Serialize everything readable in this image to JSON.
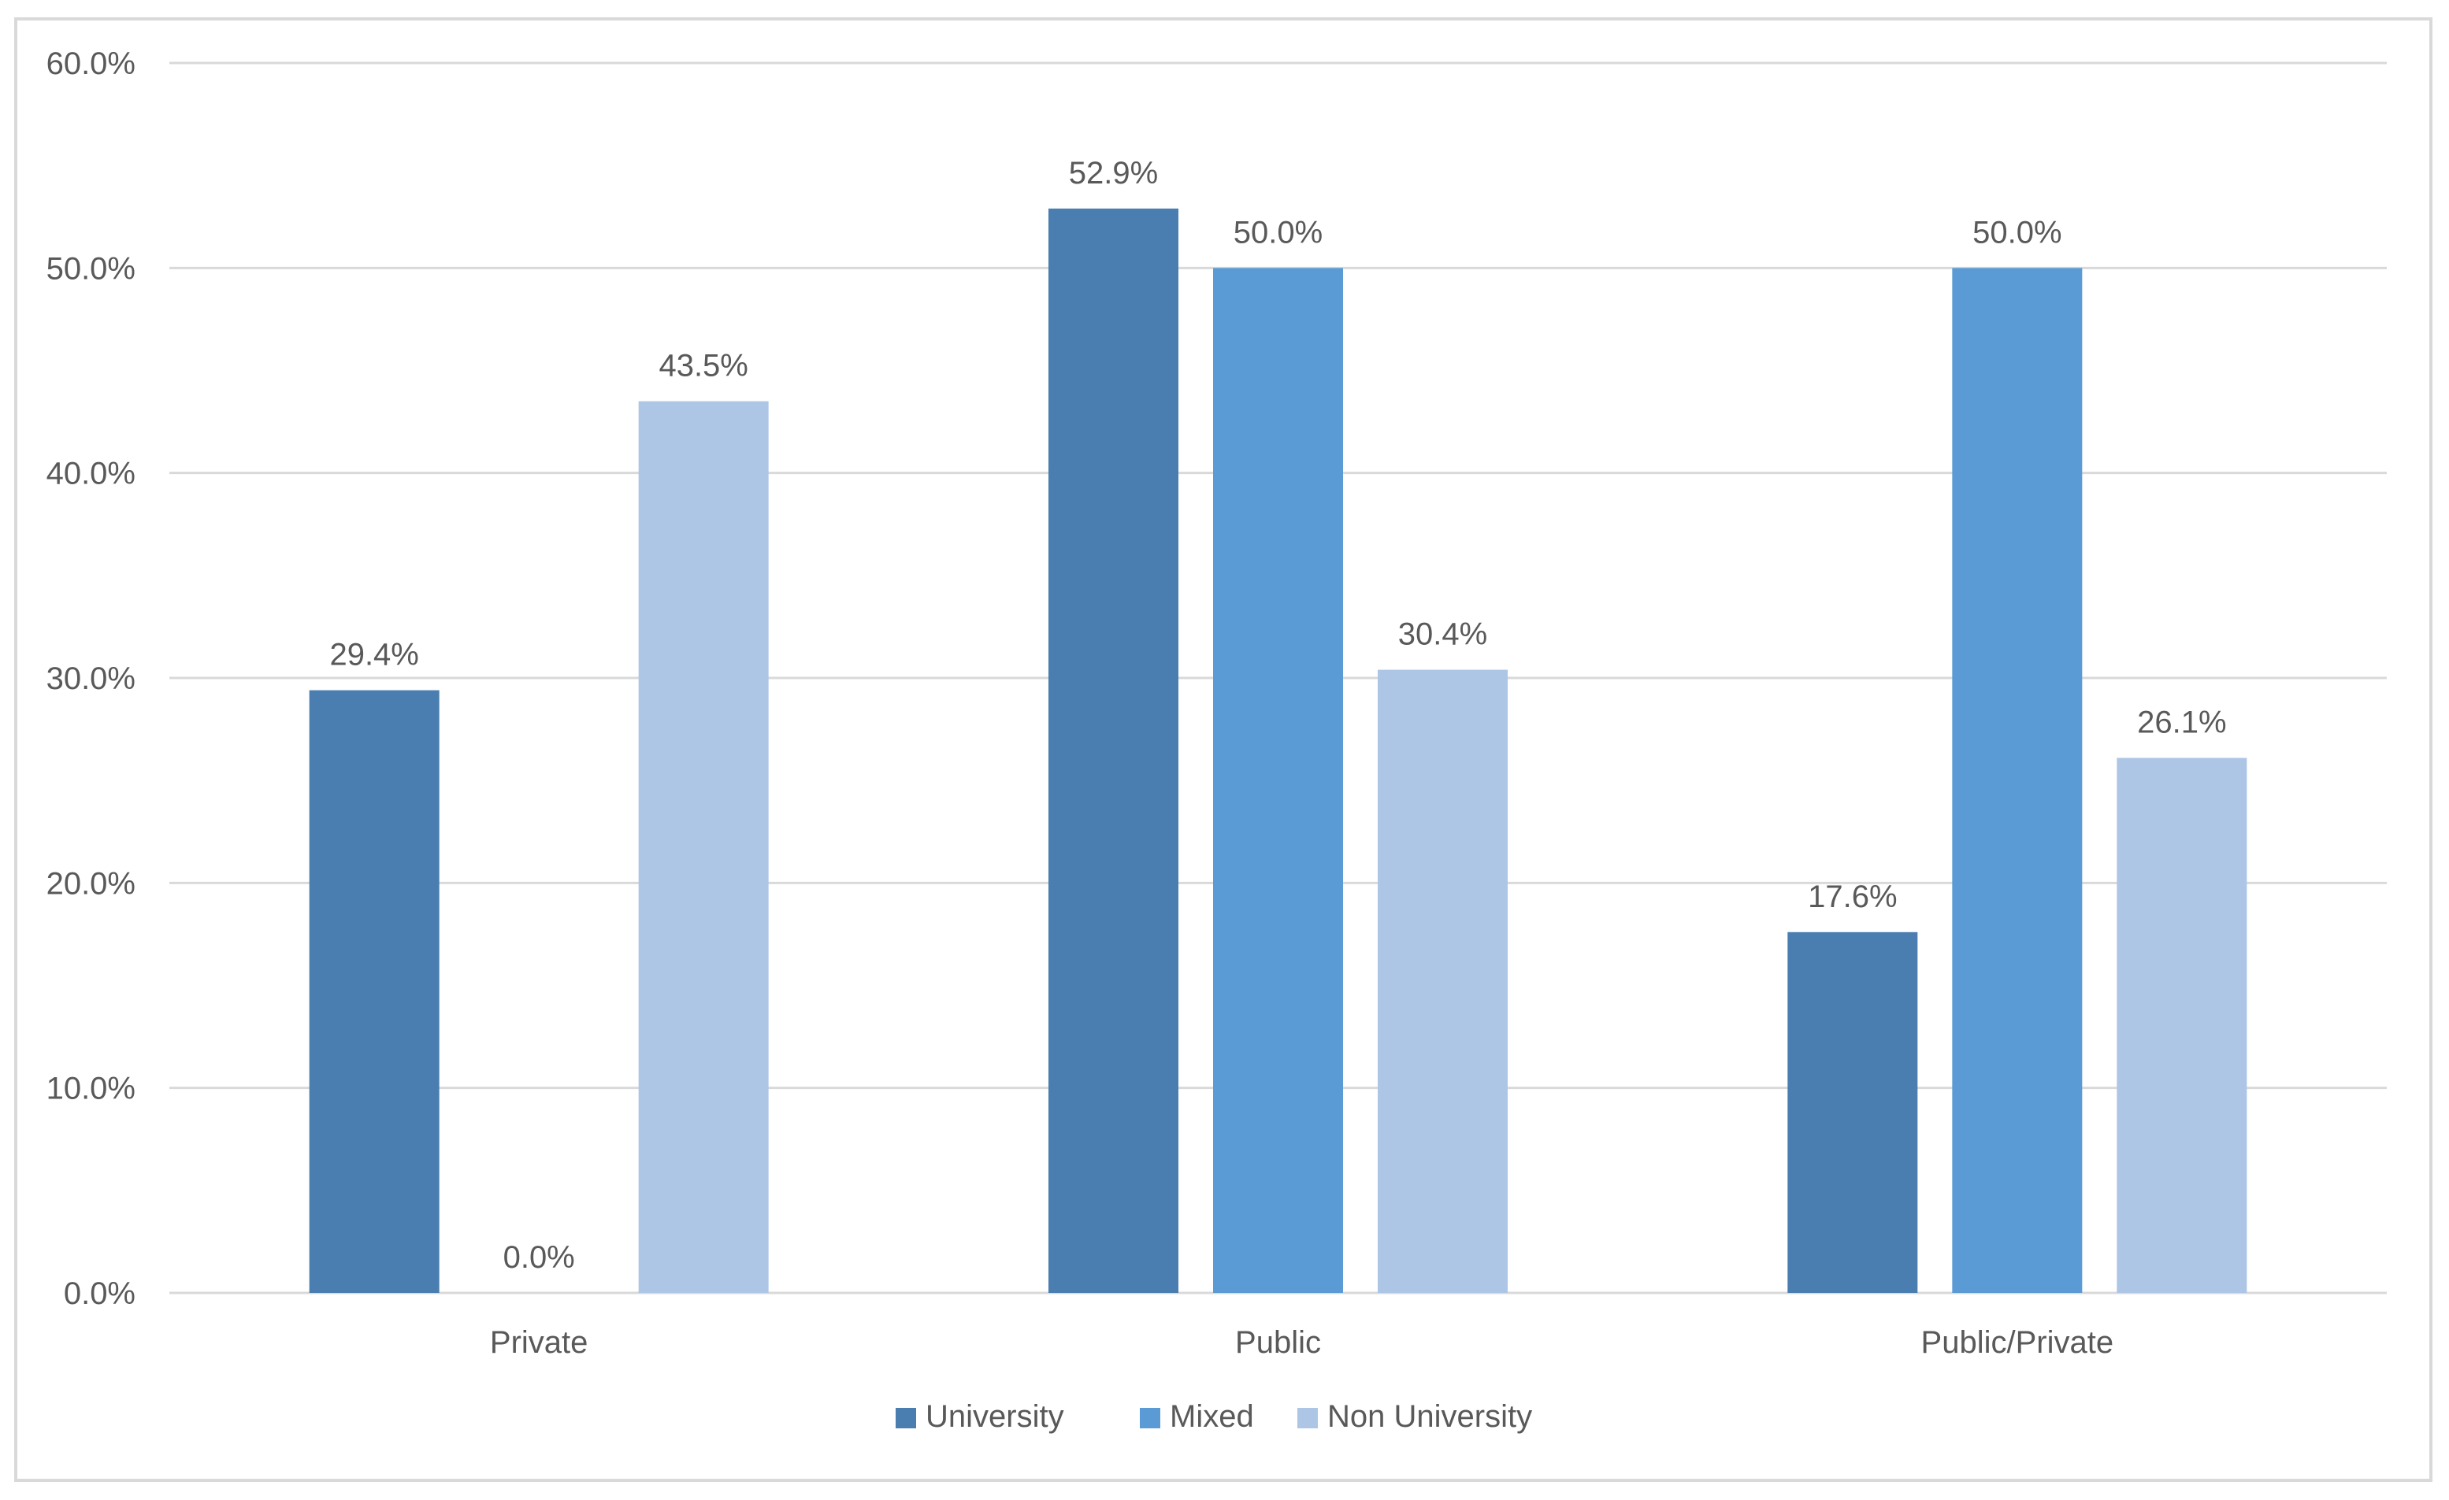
{
  "chart_data": {
    "type": "bar",
    "categories": [
      "Private",
      "Public",
      "Public/Private"
    ],
    "series": [
      {
        "name": "University",
        "values": [
          29.4,
          52.9,
          17.6
        ],
        "labels": [
          "29.4%",
          "52.9%",
          "17.6%"
        ],
        "color": "#4a7eb0"
      },
      {
        "name": "Mixed",
        "values": [
          0.0,
          50.0,
          50.0
        ],
        "labels": [
          "0.0%",
          "50.0%",
          "50.0%"
        ],
        "color": "#5b9bd5"
      },
      {
        "name": "Non University",
        "values": [
          43.5,
          30.4,
          26.1
        ],
        "labels": [
          "43.5%",
          "30.4%",
          "26.1%"
        ],
        "color": "#adc6e5"
      }
    ],
    "y_ticks": [
      "0.0%",
      "10.0%",
      "20.0%",
      "30.0%",
      "40.0%",
      "50.0%",
      "60.0%"
    ],
    "ylim": [
      0,
      60
    ],
    "grid": true,
    "legend_position": "bottom",
    "colors": {
      "grid": "#d9d9d9",
      "text": "#595959",
      "frame": "#d9d9d9"
    }
  }
}
